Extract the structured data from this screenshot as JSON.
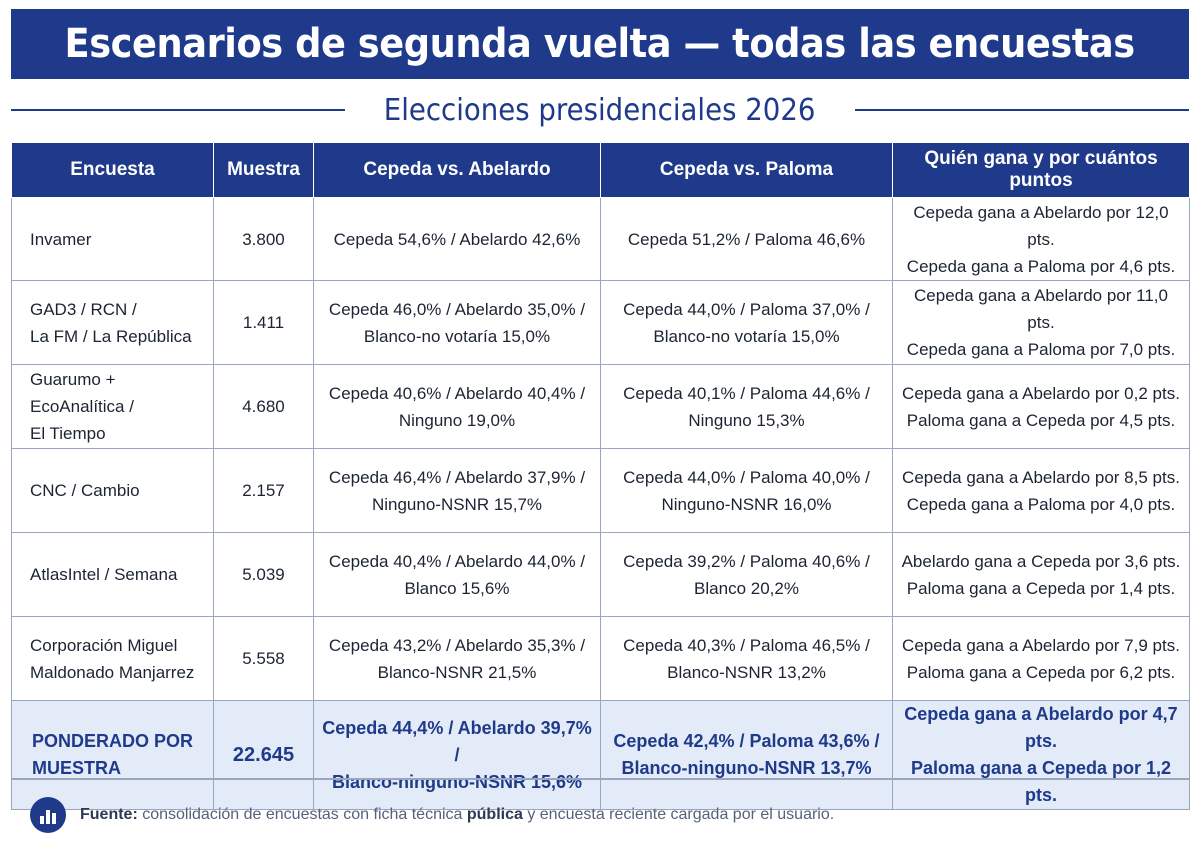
{
  "title": "Escenarios de segunda vuelta — todas las encuestas",
  "subtitle": "Elecciones presidenciales 2026",
  "table": {
    "headers": [
      "Encuesta",
      "Muestra",
      "Cepeda vs. Abelardo",
      "Cepeda vs. Paloma",
      "Quién gana y por cuántos puntos"
    ],
    "rows": [
      {
        "encuesta": [
          "Invamer"
        ],
        "muestra": "3.800",
        "abelardo": [
          "Cepeda 54,6% / Abelardo 42,6%"
        ],
        "paloma": [
          "Cepeda 51,2% / Paloma 46,6%"
        ],
        "ganador": [
          "Cepeda gana a Abelardo por 12,0 pts.",
          "Cepeda gana a Paloma por 4,6 pts."
        ]
      },
      {
        "encuesta": [
          "GAD3 / RCN /",
          "La FM / La República"
        ],
        "muestra": "1.411",
        "abelardo": [
          "Cepeda 46,0% / Abelardo 35,0% /",
          "Blanco-no votaría 15,0%"
        ],
        "paloma": [
          "Cepeda 44,0% / Paloma 37,0% /",
          "Blanco-no votaría 15,0%"
        ],
        "ganador": [
          "Cepeda gana a Abelardo por 11,0 pts.",
          "Cepeda gana a Paloma por 7,0 pts."
        ]
      },
      {
        "encuesta": [
          "Guarumo + EcoAnalítica /",
          "El Tiempo"
        ],
        "muestra": "4.680",
        "abelardo": [
          "Cepeda 40,6% / Abelardo 40,4% /",
          "Ninguno 19,0%"
        ],
        "paloma": [
          "Cepeda 40,1% / Paloma 44,6% /",
          "Ninguno 15,3%"
        ],
        "ganador": [
          "Cepeda gana a Abelardo por 0,2 pts.",
          "Paloma gana a Cepeda por 4,5 pts."
        ]
      },
      {
        "encuesta": [
          "CNC / Cambio"
        ],
        "muestra": "2.157",
        "abelardo": [
          "Cepeda 46,4% / Abelardo 37,9% /",
          "Ninguno-NSNR 15,7%"
        ],
        "paloma": [
          "Cepeda 44,0% / Paloma 40,0% /",
          "Ninguno-NSNR 16,0%"
        ],
        "ganador": [
          "Cepeda gana a Abelardo por 8,5 pts.",
          "Cepeda gana a Paloma por 4,0 pts."
        ]
      },
      {
        "encuesta": [
          "AtlasIntel / Semana"
        ],
        "muestra": "5.039",
        "abelardo": [
          "Cepeda 40,4% / Abelardo 44,0% /",
          "Blanco 15,6%"
        ],
        "paloma": [
          "Cepeda 39,2% / Paloma 40,6% /",
          "Blanco 20,2%"
        ],
        "ganador": [
          "Abelardo gana a Cepeda por 3,6 pts.",
          "Paloma gana a Cepeda por 1,4 pts."
        ]
      },
      {
        "encuesta": [
          "Corporación Miguel",
          "Maldonado Manjarrez"
        ],
        "muestra": "5.558",
        "abelardo": [
          "Cepeda 43,2% / Abelardo 35,3% /",
          "Blanco-NSNR 21,5%"
        ],
        "paloma": [
          "Cepeda 40,3% / Paloma 46,5% /",
          "Blanco-NSNR 13,2%"
        ],
        "ganador": [
          "Cepeda gana a Abelardo por 7,9 pts.",
          "Paloma gana a Cepeda por 6,2 pts."
        ]
      }
    ],
    "weighted": {
      "encuesta": [
        "PONDERADO POR",
        "MUESTRA"
      ],
      "muestra": "22.645",
      "abelardo": [
        "Cepeda 44,4% / Abelardo 39,7% /",
        "Blanco-ninguno-NSNR 15,6%"
      ],
      "paloma": [
        "Cepeda 42,4% / Paloma 43,6% /",
        "Blanco-ninguno-NSNR 13,7%"
      ],
      "ganador": [
        "Cepeda gana a Abelardo por 4,7 pts.",
        "Paloma gana a Cepeda por 1,2 pts."
      ]
    }
  },
  "footer": {
    "icon": "bar-chart-icon",
    "label": "Fuente:",
    "text_before": " consolidación de encuestas con ficha técnica ",
    "text_bold": "pública",
    "text_after": " y encuesta reciente cargada por el usuario."
  },
  "colors": {
    "primary": "#1f3a8a",
    "weighted_row_bg": "#e3ebf8",
    "border": "#9aa6bd"
  }
}
